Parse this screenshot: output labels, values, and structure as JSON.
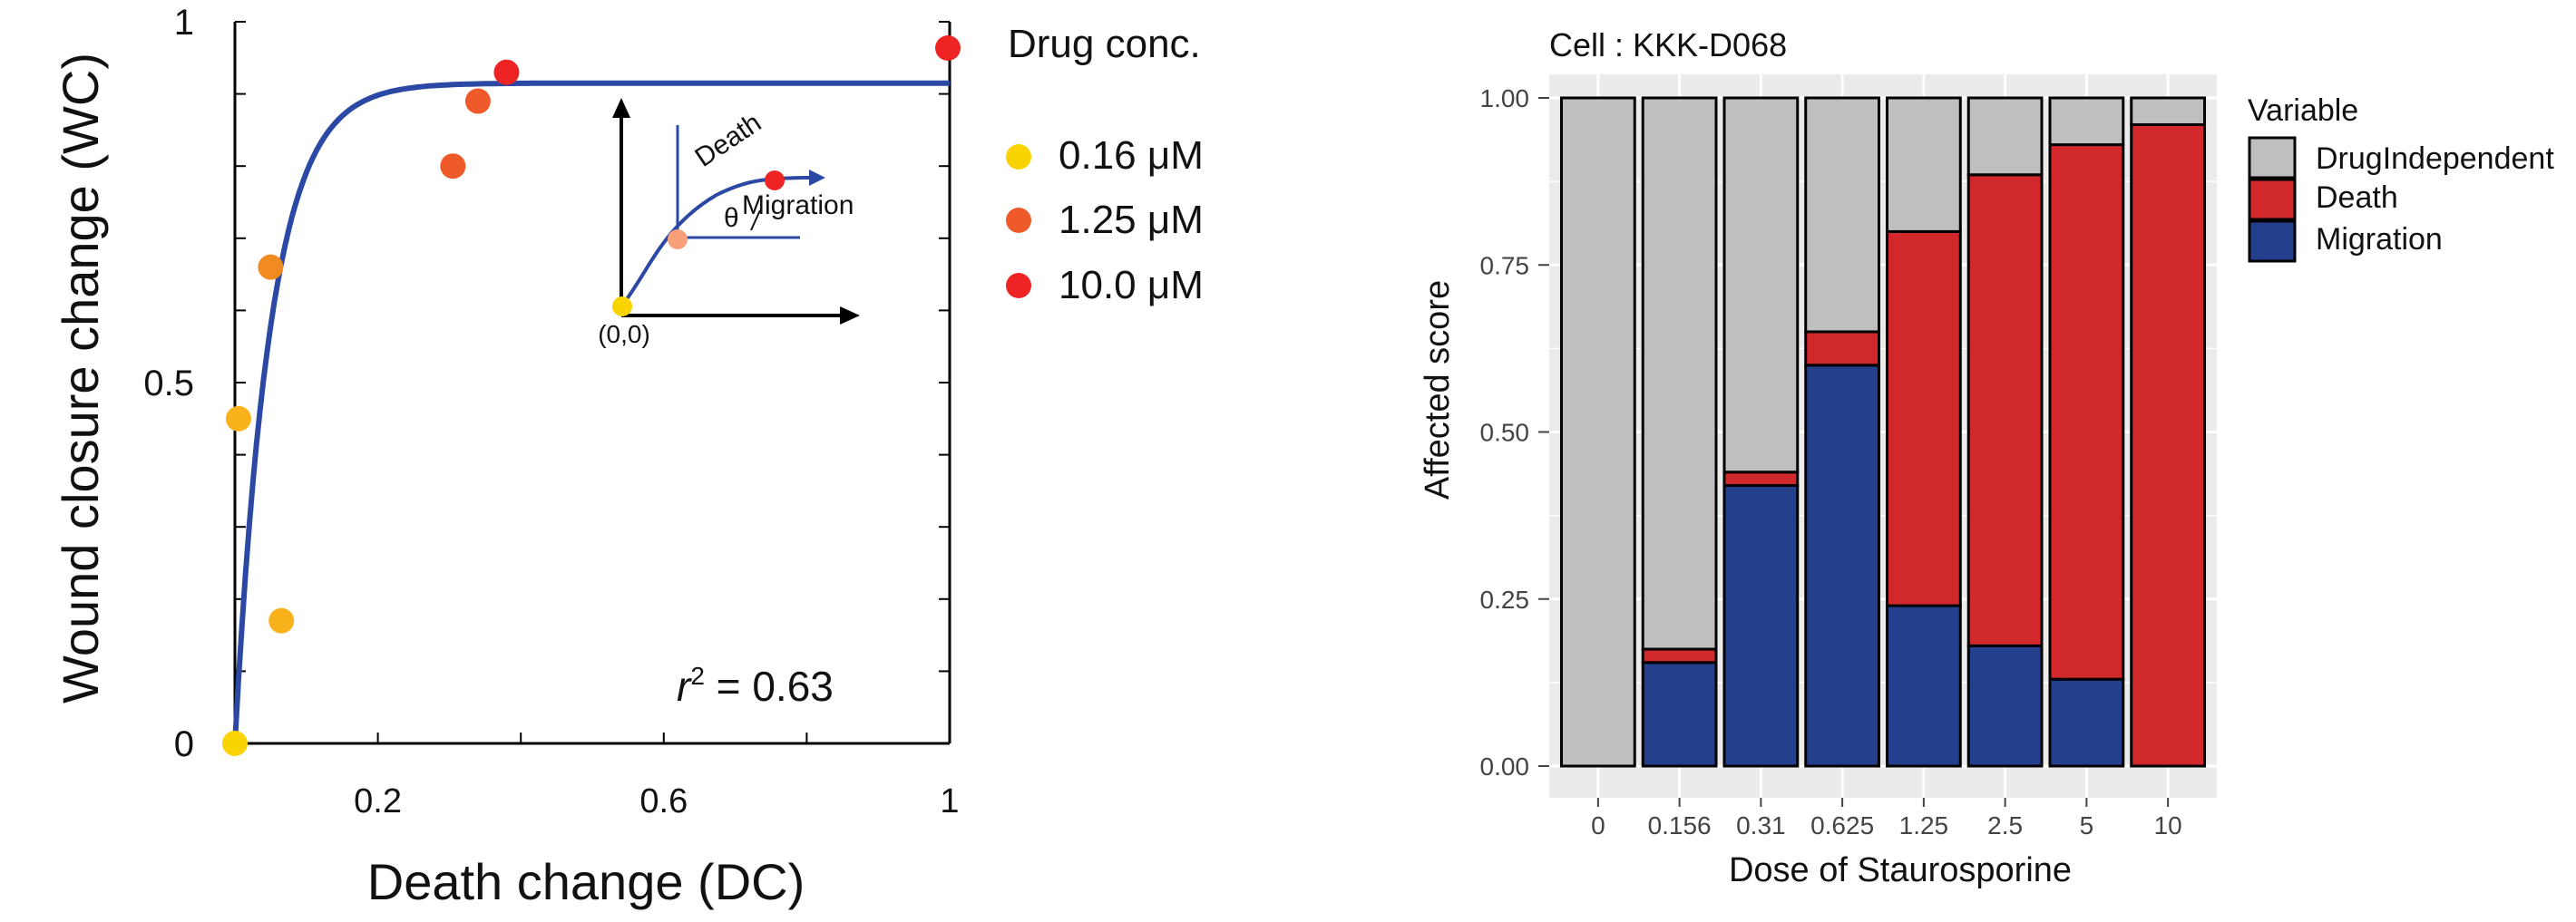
{
  "colors": {
    "axis": "#000000",
    "curve": "#2a48a4",
    "dose_low": "#f9d400",
    "dose_mid": "#ef5a2a",
    "dose_high": "#ee2424",
    "panel_bg": "#ebebeb",
    "grid": "#ffffff",
    "drug_independent": "#bfbfbf",
    "death": "#d1282b",
    "migration": "#243f8b",
    "inset_blue": "#2a48a4"
  },
  "chart_data": [
    {
      "type": "scatter",
      "xlabel": "Death change (DC)",
      "ylabel": "Wound closure change (WC)",
      "xlim": [
        0,
        1
      ],
      "ylim": [
        0,
        1
      ],
      "x_ticks": [
        {
          "value": 0.2,
          "label": "0.2"
        },
        {
          "value": 0.6,
          "label": "0.6"
        },
        {
          "value": 1.0,
          "label": "1"
        }
      ],
      "y_ticks": [
        {
          "value": 0,
          "label": "0"
        },
        {
          "value": 0.5,
          "label": "0.5"
        },
        {
          "value": 1,
          "label": "1"
        }
      ],
      "x_minor_ticks": [
        0,
        0.2,
        0.4,
        0.6,
        0.8,
        1.0
      ],
      "y_minor_ticks": [
        0,
        0.1,
        0.2,
        0.3,
        0.4,
        0.5,
        0.6,
        0.7,
        0.8,
        0.9,
        1.0
      ],
      "fit": {
        "model": "exponential saturation",
        "plateau": 0.915,
        "rate": 20,
        "x_range": [
          0,
          1
        ]
      },
      "annotation": {
        "r_symbol": "r",
        "sup": "2",
        "text": " = 0.63"
      },
      "legend": {
        "title": "Drug conc.",
        "title_color": "#ee2424",
        "items": [
          {
            "label": "0.16 μM",
            "color": "#f9d400"
          },
          {
            "label": "1.25 μM",
            "color": "#ef5a2a"
          },
          {
            "label": "10.0 μM",
            "color": "#ee2424"
          }
        ]
      },
      "points": [
        {
          "x": 0.0,
          "y": 0.0,
          "color": "#f9d400"
        },
        {
          "x": 0.005,
          "y": 0.45,
          "color": "#f9b21c"
        },
        {
          "x": 0.065,
          "y": 0.17,
          "color": "#f9b21c"
        },
        {
          "x": 0.05,
          "y": 0.66,
          "color": "#f28a22"
        },
        {
          "x": 0.305,
          "y": 0.8,
          "color": "#ef5a2a"
        },
        {
          "x": 0.34,
          "y": 0.89,
          "color": "#ef5a2a"
        },
        {
          "x": 0.38,
          "y": 0.93,
          "color": "#ee2424"
        }
      ],
      "inset": {
        "origin_label": "(0,0)",
        "death_label": "Death",
        "migration_label": "Migration",
        "theta_label": "θ"
      }
    },
    {
      "type": "bar",
      "stacked": true,
      "title": "Cell : KKK-D068",
      "xlabel": "Dose of Staurosporine",
      "ylabel": "Affected score",
      "ylim": [
        0,
        1
      ],
      "y_ticks": [
        {
          "value": 0,
          "label": "0.00"
        },
        {
          "value": 0.25,
          "label": "0.25"
        },
        {
          "value": 0.5,
          "label": "0.50"
        },
        {
          "value": 0.75,
          "label": "0.75"
        },
        {
          "value": 1.0,
          "label": "1.00"
        }
      ],
      "categories": [
        "0",
        "0.156",
        "0.31",
        "0.625",
        "1.25",
        "2.5",
        "5",
        "10"
      ],
      "legend": {
        "title": "Variable",
        "position": "right"
      },
      "series": [
        {
          "name": "Migration",
          "color": "#243f8b",
          "values": [
            0.0,
            0.155,
            0.42,
            0.6,
            0.24,
            0.18,
            0.13,
            0.0
          ]
        },
        {
          "name": "Death",
          "color": "#d1282b",
          "values": [
            0.0,
            0.02,
            0.02,
            0.05,
            0.56,
            0.705,
            0.8,
            0.96
          ]
        },
        {
          "name": "DrugIndependent",
          "color": "#bfbfbf",
          "values": [
            1.0,
            0.825,
            0.56,
            0.35,
            0.2,
            0.115,
            0.07,
            0.04
          ]
        }
      ],
      "legend_order": [
        "DrugIndependent",
        "Death",
        "Migration"
      ]
    }
  ]
}
